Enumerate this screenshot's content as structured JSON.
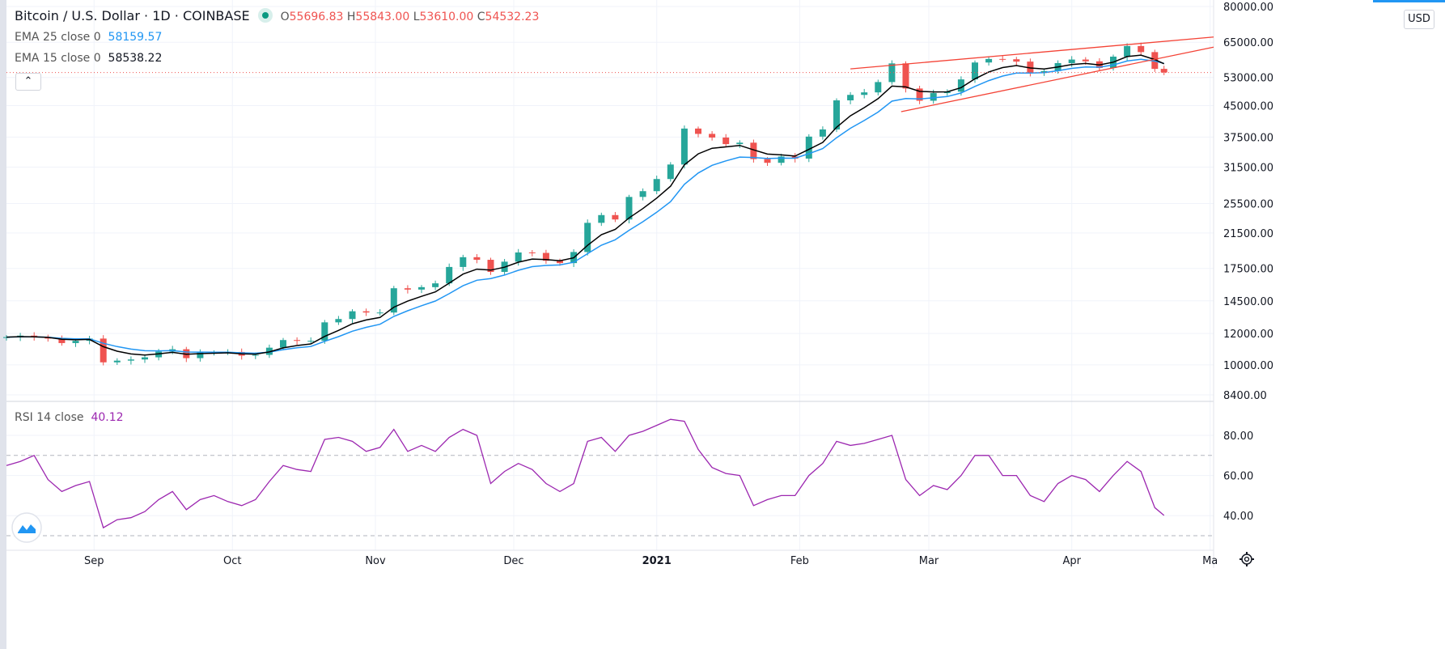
{
  "header": {
    "symbol": "Bitcoin / U.S. Dollar · 1D · COINBASE",
    "o_label": "O",
    "o": "55696.83",
    "h_label": "H",
    "h": "55843.00",
    "l_label": "L",
    "l": "53610.00",
    "c_label": "C",
    "c": "54532.23"
  },
  "indicators": {
    "ema25_label": "EMA 25 close 0",
    "ema25": "58159.57",
    "ema15_label": "EMA 15 close 0",
    "ema15": "58538.22",
    "rsi_label": "RSI 14 close",
    "rsi": "40.12"
  },
  "currency": "USD",
  "colors": {
    "up": "#26a69a",
    "down": "#ef5350",
    "ema15": "#000000",
    "ema25": "#2196f3",
    "rsi": "#9c27b0",
    "trendline": "#f44336"
  },
  "chart_data": [
    {
      "type": "candlestick",
      "scale": "log",
      "grid": true,
      "price_ticks": [
        80000,
        65000,
        53000,
        45000,
        37500,
        31500,
        25500,
        21500,
        17500,
        14500,
        12000,
        10000,
        8400
      ],
      "price_tick_labels": [
        "80000.00",
        "65000.00",
        "53000.00",
        "45000.00",
        "37500.00",
        "31500.00",
        "25500.00",
        "21500.00",
        "17500.00",
        "14500.00",
        "12000.00",
        "10000.00",
        "8400.00"
      ],
      "time_ticks": [
        {
          "date": "2020-09-01",
          "label": "Sep"
        },
        {
          "date": "2020-10-01",
          "label": "Oct"
        },
        {
          "date": "2020-11-01",
          "label": "Nov"
        },
        {
          "date": "2020-12-01",
          "label": "Dec"
        },
        {
          "date": "2021-01-01",
          "label": "2021"
        },
        {
          "date": "2021-02-01",
          "label": "Feb"
        },
        {
          "date": "2021-03-01",
          "label": "Mar"
        },
        {
          "date": "2021-04-01",
          "label": "Apr"
        },
        {
          "date": "2021-05-01",
          "label": "Ma"
        }
      ],
      "x": [
        "2020-08-13",
        "2020-08-16",
        "2020-08-19",
        "2020-08-22",
        "2020-08-25",
        "2020-08-28",
        "2020-08-31",
        "2020-09-03",
        "2020-09-06",
        "2020-09-09",
        "2020-09-12",
        "2020-09-15",
        "2020-09-18",
        "2020-09-21",
        "2020-09-24",
        "2020-09-27",
        "2020-09-30",
        "2020-10-03",
        "2020-10-06",
        "2020-10-09",
        "2020-10-12",
        "2020-10-15",
        "2020-10-18",
        "2020-10-21",
        "2020-10-24",
        "2020-10-27",
        "2020-10-30",
        "2020-11-02",
        "2020-11-05",
        "2020-11-08",
        "2020-11-11",
        "2020-11-14",
        "2020-11-17",
        "2020-11-20",
        "2020-11-23",
        "2020-11-26",
        "2020-11-29",
        "2020-12-02",
        "2020-12-05",
        "2020-12-08",
        "2020-12-11",
        "2020-12-14",
        "2020-12-17",
        "2020-12-20",
        "2020-12-23",
        "2020-12-26",
        "2020-12-29",
        "2021-01-01",
        "2021-01-04",
        "2021-01-07",
        "2021-01-10",
        "2021-01-13",
        "2021-01-16",
        "2021-01-19",
        "2021-01-22",
        "2021-01-25",
        "2021-01-28",
        "2021-01-31",
        "2021-02-03",
        "2021-02-06",
        "2021-02-09",
        "2021-02-12",
        "2021-02-15",
        "2021-02-18",
        "2021-02-21",
        "2021-02-24",
        "2021-02-27",
        "2021-03-02",
        "2021-03-05",
        "2021-03-08",
        "2021-03-11",
        "2021-03-14",
        "2021-03-17",
        "2021-03-20",
        "2021-03-23",
        "2021-03-26",
        "2021-03-29",
        "2021-04-01",
        "2021-04-04",
        "2021-04-07",
        "2021-04-10",
        "2021-04-13",
        "2021-04-16",
        "2021-04-19",
        "2021-04-21"
      ],
      "close": [
        11750,
        11850,
        11750,
        11650,
        11350,
        11500,
        11650,
        10150,
        10250,
        10320,
        10450,
        10800,
        10950,
        10400,
        10750,
        10750,
        10780,
        10550,
        10600,
        11050,
        11550,
        11500,
        11500,
        12800,
        13050,
        13650,
        13550,
        13550,
        15600,
        15480,
        15700,
        16050,
        17650,
        18680,
        18400,
        17150,
        18200,
        19200,
        19150,
        18300,
        18050,
        19250,
        22800,
        23850,
        23250,
        26500,
        27400,
        29400,
        31980,
        39400,
        38200,
        37400,
        36000,
        36300,
        33000,
        32300,
        33500,
        33100,
        37600,
        39200,
        46400,
        47900,
        48600,
        51600,
        57500,
        49700,
        46300,
        48400,
        48800,
        52400,
        57800,
        59000,
        58900,
        58100,
        54400,
        55000,
        57600,
        58800,
        58200,
        56000,
        59800,
        63600,
        61400,
        55700,
        54532.23
      ],
      "last_price": 54532.23,
      "drawings": [
        {
          "type": "trendline",
          "from": {
            "date": "2021-02-12",
            "price": 55700
          },
          "to": {
            "date": "2021-05-02",
            "price": 67000
          }
        },
        {
          "type": "trendline",
          "from": {
            "date": "2021-02-23",
            "price": 43450
          },
          "to": {
            "date": "2021-05-02",
            "price": 63200
          }
        }
      ]
    },
    {
      "type": "line",
      "name": "RSI 14 close",
      "ylim": [
        20,
        95
      ],
      "levels": [
        70,
        30
      ],
      "y_ticks": [
        80,
        60,
        40
      ],
      "y_tick_labels": [
        "80.00",
        "60.00",
        "40.00"
      ],
      "values": [
        65,
        67,
        70,
        58,
        52,
        55,
        57,
        34,
        38,
        39,
        42,
        48,
        52,
        43,
        48,
        50,
        47,
        45,
        48,
        57,
        65,
        63,
        62,
        78,
        79,
        77,
        72,
        74,
        83,
        72,
        75,
        72,
        79,
        83,
        80,
        56,
        62,
        66,
        63,
        56,
        52,
        56,
        77,
        79,
        72,
        80,
        82,
        85,
        88,
        87,
        73,
        64,
        61,
        60,
        45,
        48,
        50,
        50,
        60,
        66,
        77,
        75,
        76,
        78,
        80,
        58,
        50,
        55,
        53,
        60,
        70,
        70,
        60,
        60,
        50,
        47,
        56,
        60,
        58,
        52,
        60,
        67,
        62,
        44,
        40.12
      ]
    }
  ]
}
